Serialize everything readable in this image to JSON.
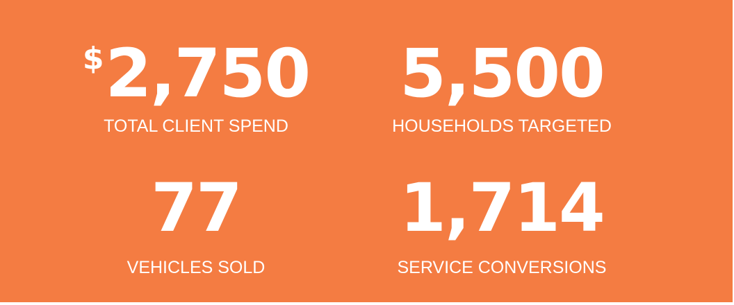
{
  "colors": {
    "background": "#F47C42",
    "text": "#FFFFFF",
    "outer": "#FFFFFF"
  },
  "stats": [
    {
      "currency": "$",
      "value": "2,750",
      "label": "TOTAL CLIENT SPEND"
    },
    {
      "value": "5,500",
      "label": "HOUSEHOLDS TARGETED"
    },
    {
      "value": "77",
      "label": "VEHICLES SOLD"
    },
    {
      "value": "1,714",
      "label": "SERVICE CONVERSIONS"
    }
  ]
}
